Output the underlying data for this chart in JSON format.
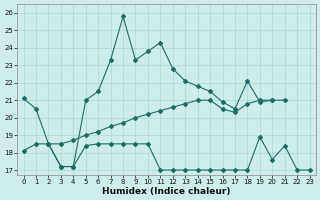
{
  "xlabel": "Humidex (Indice chaleur)",
  "background_color": "#ceecea",
  "grid_color": "#aed4d2",
  "line_color": "#1a6e68",
  "xlim": [
    -0.5,
    23.5
  ],
  "ylim": [
    16.7,
    26.5
  ],
  "xticks": [
    0,
    1,
    2,
    3,
    4,
    5,
    6,
    7,
    8,
    9,
    10,
    11,
    12,
    13,
    14,
    15,
    16,
    17,
    18,
    19,
    20,
    21,
    22,
    23
  ],
  "yticks": [
    17,
    18,
    19,
    20,
    21,
    22,
    23,
    24,
    25,
    26
  ],
  "line1_x": [
    0,
    1,
    2,
    3,
    4,
    5,
    6,
    7,
    8,
    9,
    10,
    11,
    12,
    13,
    14,
    15,
    16,
    17,
    18,
    19,
    20,
    21
  ],
  "line1_y": [
    21.1,
    20.5,
    18.5,
    17.2,
    17.2,
    21.0,
    21.5,
    23.3,
    25.8,
    23.3,
    23.8,
    24.3,
    22.8,
    22.1,
    21.8,
    21.5,
    20.9,
    20.5,
    22.1,
    20.9,
    21.0,
    21.0
  ],
  "line2_x": [
    2,
    3,
    4,
    5,
    6,
    7,
    8,
    9,
    10,
    11,
    12,
    13,
    14,
    15,
    16,
    17,
    18,
    19,
    20
  ],
  "line2_y": [
    18.5,
    18.5,
    18.7,
    19.0,
    19.2,
    19.5,
    19.7,
    20.0,
    20.2,
    20.4,
    20.6,
    20.8,
    21.0,
    21.0,
    20.5,
    20.3,
    20.8,
    21.0,
    21.0
  ],
  "line3_x": [
    0,
    1,
    2,
    3,
    4,
    5,
    6,
    7,
    8,
    9,
    10,
    11,
    12,
    13,
    14,
    15,
    16,
    17,
    18,
    19,
    20,
    21,
    22,
    23
  ],
  "line3_y": [
    18.1,
    18.5,
    18.5,
    17.2,
    17.2,
    18.4,
    18.5,
    18.5,
    18.5,
    18.5,
    18.5,
    17.0,
    17.0,
    17.0,
    17.0,
    17.0,
    17.0,
    17.0,
    17.0,
    18.9,
    17.6,
    18.4,
    17.0,
    17.0
  ]
}
